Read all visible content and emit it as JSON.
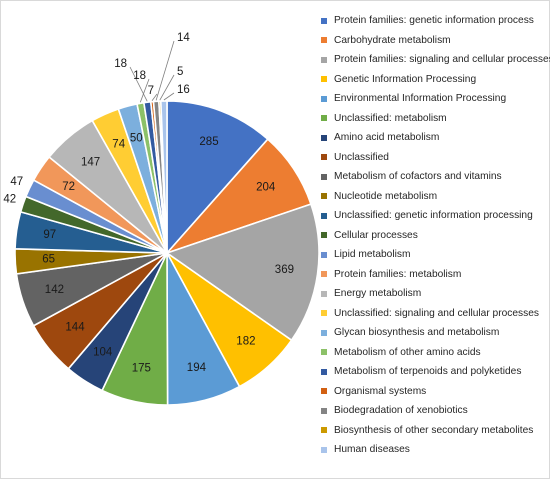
{
  "chart_data": {
    "type": "pie",
    "title": "",
    "legend_position": "right",
    "slices": [
      {
        "label": "Protein families: genetic information process",
        "value": 285,
        "color": "#4472C4"
      },
      {
        "label": "Carbohydrate metabolism",
        "value": 204,
        "color": "#ED7D31"
      },
      {
        "label": "Protein families: signaling and cellular processes",
        "value": 369,
        "color": "#A5A5A5"
      },
      {
        "label": "Genetic Information Processing",
        "value": 182,
        "color": "#FFC000"
      },
      {
        "label": "Environmental Information Processing",
        "value": 194,
        "color": "#5B9BD5"
      },
      {
        "label": "Unclassified: metabolism",
        "value": 175,
        "color": "#70AD47"
      },
      {
        "label": "Amino acid metabolism",
        "value": 104,
        "color": "#264478"
      },
      {
        "label": "Unclassified",
        "value": 144,
        "color": "#9E480E"
      },
      {
        "label": "Metabolism of cofactors and vitamins",
        "value": 142,
        "color": "#636363"
      },
      {
        "label": "Nucleotide metabolism",
        "value": 65,
        "color": "#997300"
      },
      {
        "label": "Unclassified: genetic information processing",
        "value": 97,
        "color": "#255E91"
      },
      {
        "label": "Cellular processes",
        "value": 42,
        "color": "#43682B"
      },
      {
        "label": "Lipid metabolism",
        "value": 47,
        "color": "#698ED0"
      },
      {
        "label": "Protein families: metabolism",
        "value": 72,
        "color": "#F1975A"
      },
      {
        "label": "Energy metabolism",
        "value": 147,
        "color": "#B7B7B7"
      },
      {
        "label": "Unclassified: signaling and cellular processes",
        "value": 74,
        "color": "#FFCD33"
      },
      {
        "label": "Glycan biosynthesis and metabolism",
        "value": 50,
        "color": "#7CAFDD"
      },
      {
        "label": "Metabolism of other amino acids",
        "value": 18,
        "color": "#8CC168"
      },
      {
        "label": "Metabolism of terpenoids and polyketides",
        "value": 18,
        "color": "#335AA1"
      },
      {
        "label": "Organismal systems",
        "value": 7,
        "color": "#D26012"
      },
      {
        "label": "Biodegradation of xenobiotics",
        "value": 14,
        "color": "#848484"
      },
      {
        "label": "Biosynthesis of other secondary metabolites",
        "value": 5,
        "color": "#CC9A00"
      },
      {
        "label": "Human diseases",
        "value": 16,
        "color": "#A9C4EB"
      }
    ]
  }
}
